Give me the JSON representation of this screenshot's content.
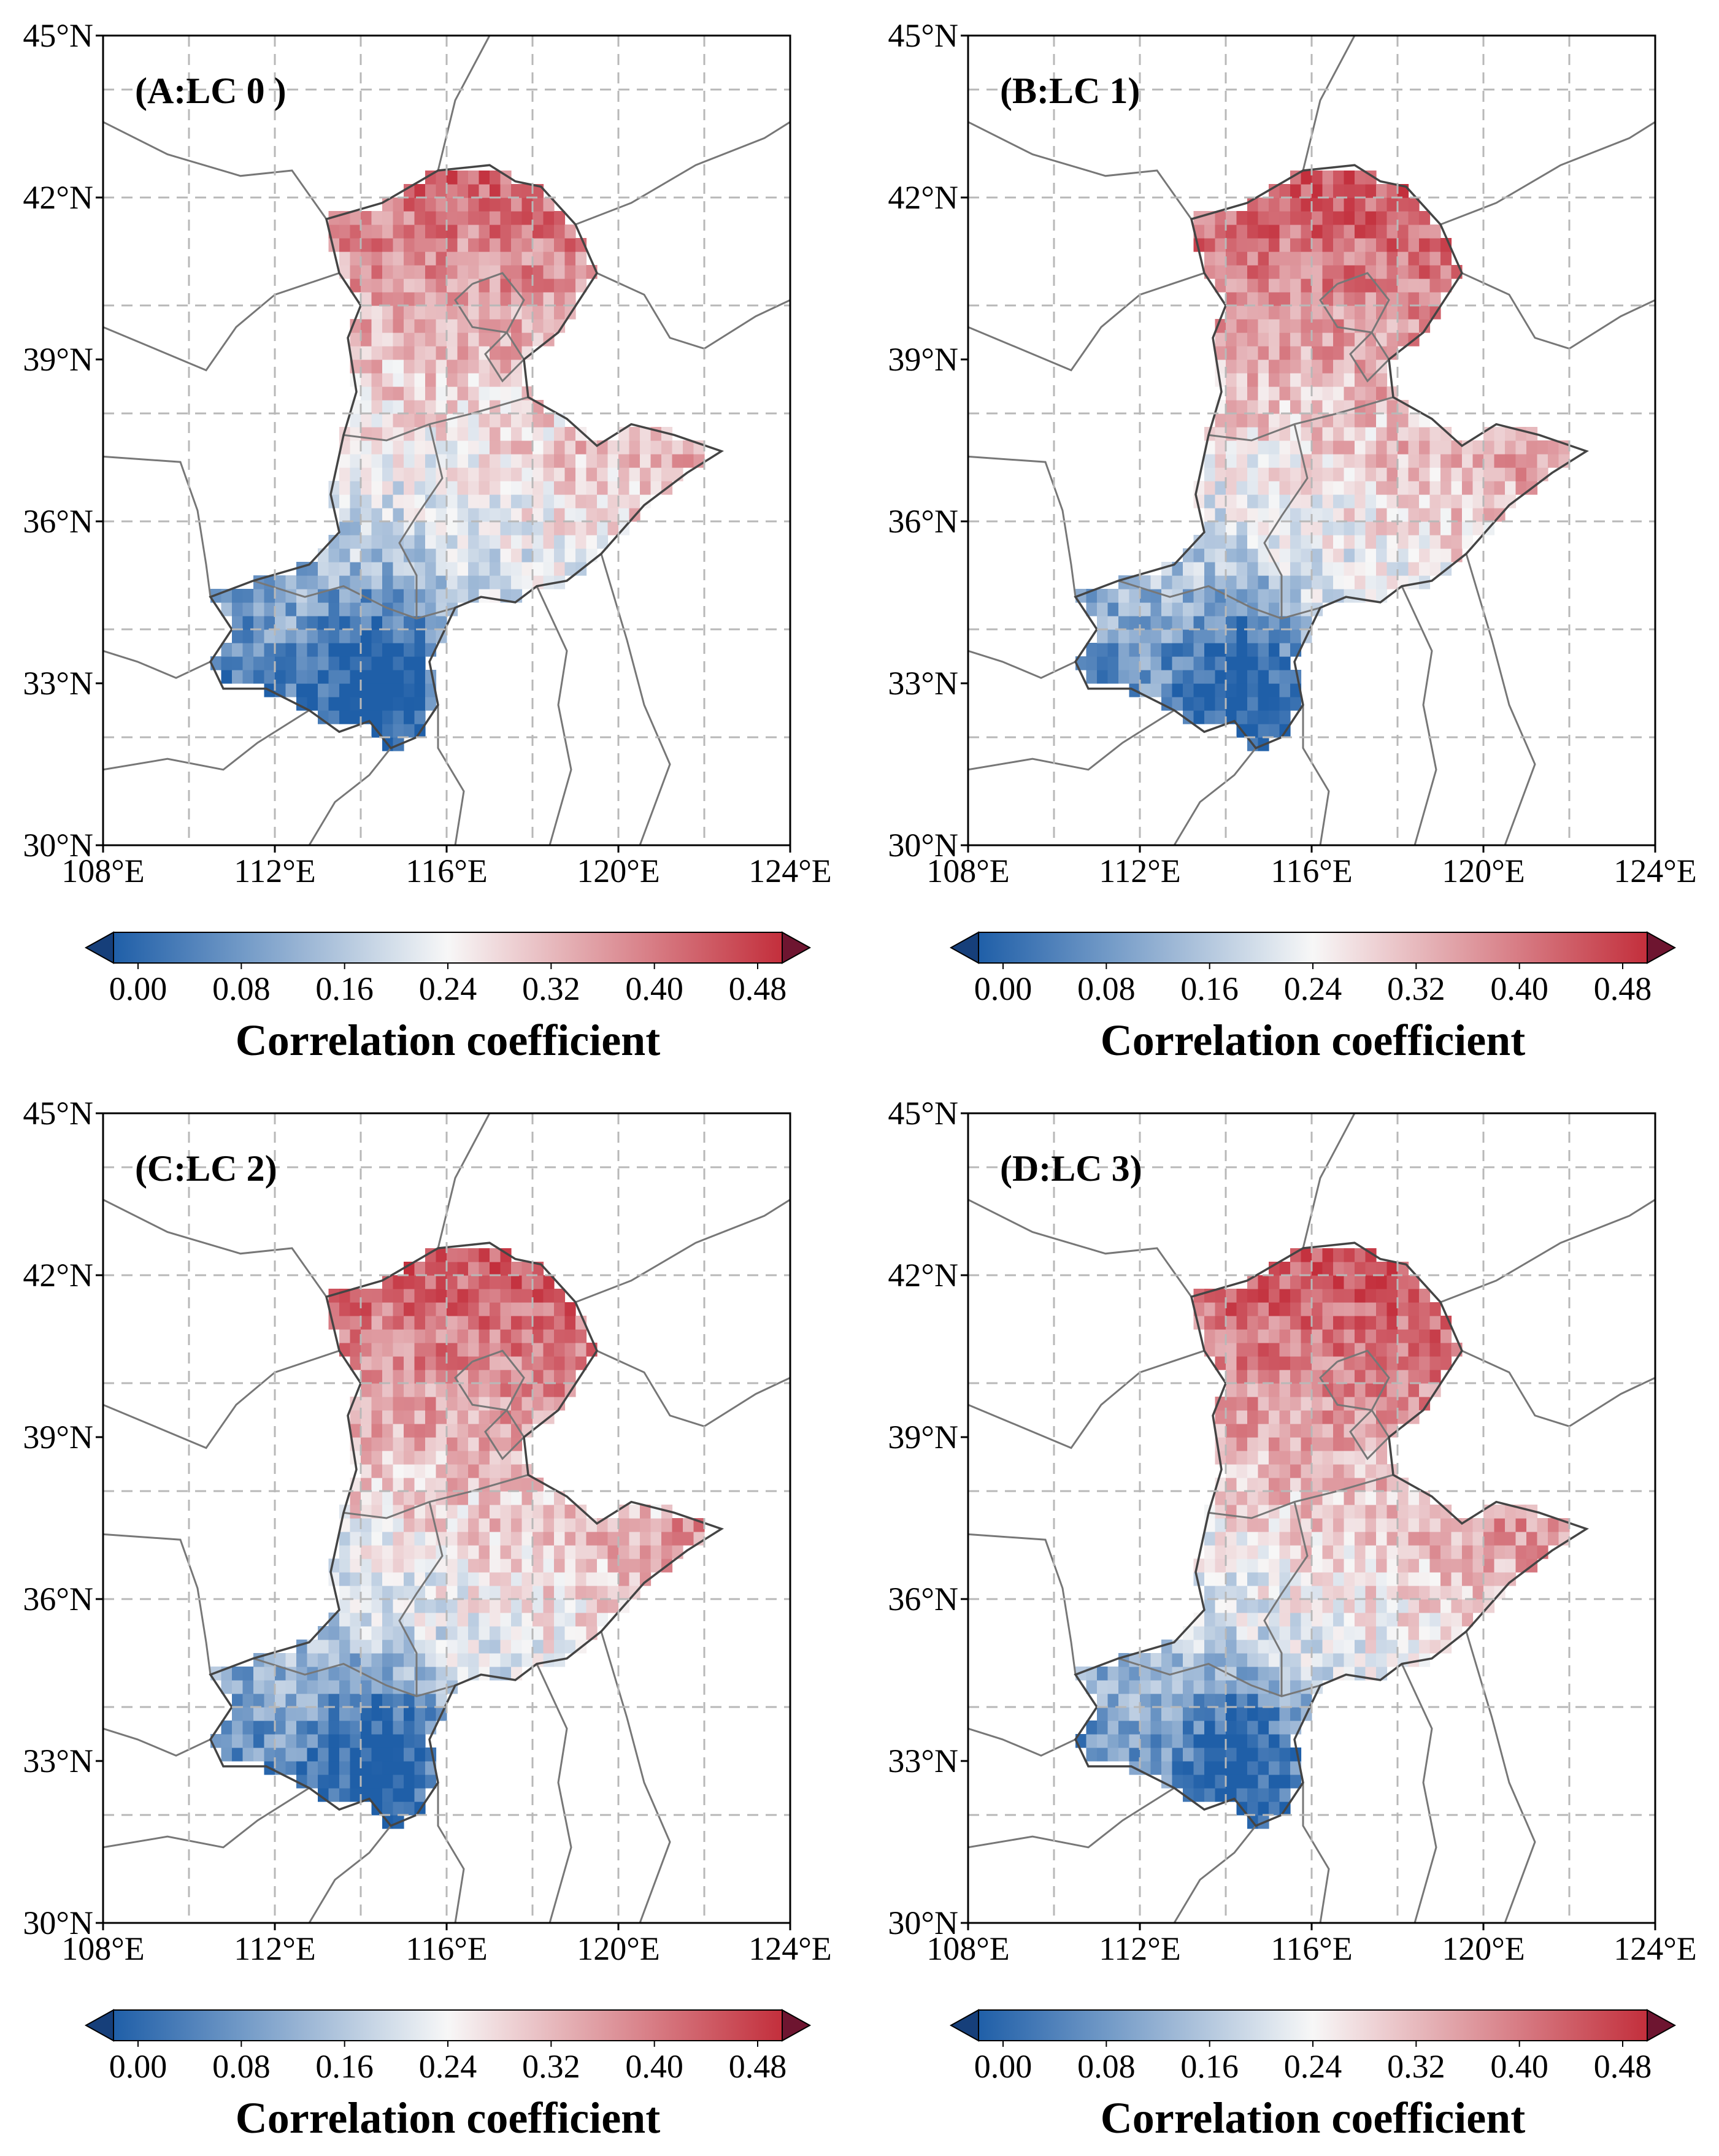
{
  "figure": {
    "lat_ticks": [
      "30°N",
      "33°N",
      "36°N",
      "39°N",
      "42°N",
      "45°N"
    ],
    "lon_ticks": [
      "108°E",
      "112°E",
      "116°E",
      "120°E",
      "124°E"
    ],
    "lat_values": [
      30,
      33,
      36,
      39,
      42,
      45
    ],
    "lon_values": [
      108,
      112,
      116,
      120,
      124
    ],
    "colors": {
      "negative": "#1f5fa8",
      "mid": "#f7f7f7",
      "positive": "#c32f3c",
      "boundary": "#777777",
      "grid": "#b8b8b8"
    }
  },
  "panels": [
    {
      "label": "(A:LC 0 )",
      "colorbar": {
        "title": "Correlation coefficient",
        "ticks": [
          "0.00",
          "0.08",
          "0.16",
          "0.24",
          "0.32",
          "0.40",
          "0.48"
        ]
      }
    },
    {
      "label": "(B:LC 1)",
      "colorbar": {
        "title": "Correlation coefficient",
        "ticks": [
          "0.00",
          "0.08",
          "0.16",
          "0.24",
          "0.32",
          "0.40",
          "0.48"
        ]
      }
    },
    {
      "label": "(C:LC 2)",
      "colorbar": {
        "title": "Correlation coefficient",
        "ticks": [
          "0.00",
          "0.08",
          "0.16",
          "0.24",
          "0.32",
          "0.40",
          "0.48"
        ]
      }
    },
    {
      "label": "(D:LC 3)",
      "colorbar": {
        "title": "Correlation coefficient",
        "ticks": [
          "0.00",
          "0.08",
          "0.16",
          "0.24",
          "0.32",
          "0.40",
          "0.48"
        ]
      }
    }
  ]
}
